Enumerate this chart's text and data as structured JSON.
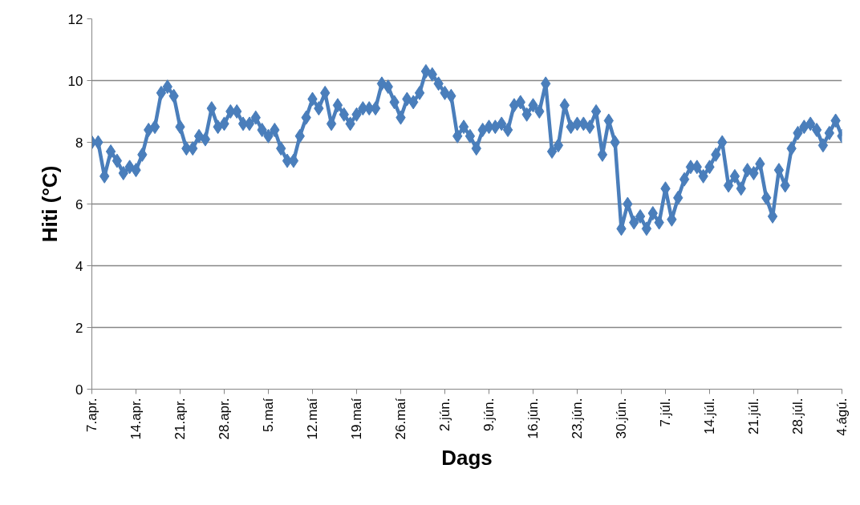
{
  "chart_data": {
    "type": "line",
    "xlabel": "Dags",
    "ylabel": "Hiti (°C)",
    "categories": [
      "7.apr.",
      null,
      null,
      null,
      null,
      null,
      null,
      "14.apr.",
      null,
      null,
      null,
      null,
      null,
      null,
      "21.apr.",
      null,
      null,
      null,
      null,
      null,
      null,
      "28.apr.",
      null,
      null,
      null,
      null,
      null,
      null,
      "5.maí",
      null,
      null,
      null,
      null,
      null,
      null,
      "12.maí",
      null,
      null,
      null,
      null,
      null,
      null,
      "19.maí",
      null,
      null,
      null,
      null,
      null,
      null,
      "26.maí",
      null,
      null,
      null,
      null,
      null,
      null,
      "2.jún.",
      null,
      null,
      null,
      null,
      null,
      null,
      "9.jún.",
      null,
      null,
      null,
      null,
      null,
      null,
      "16.jún.",
      null,
      null,
      null,
      null,
      null,
      null,
      "23.jún.",
      null,
      null,
      null,
      null,
      null,
      null,
      "30.jún.",
      null,
      null,
      null,
      null,
      null,
      null,
      "7.júl.",
      null,
      null,
      null,
      null,
      null,
      null,
      "14.júl.",
      null,
      null,
      null,
      null,
      null,
      null,
      "21.júl.",
      null,
      null,
      null,
      null,
      null,
      null,
      "28.júl.",
      null,
      null,
      null,
      null,
      null,
      null,
      "4.ágú."
    ],
    "series": [
      {
        "color": "#4a7ebb",
        "values": [
          8.0,
          8.0,
          6.9,
          7.7,
          7.4,
          7.0,
          7.2,
          7.1,
          7.6,
          8.4,
          8.5,
          9.6,
          9.8,
          9.5,
          8.5,
          7.8,
          7.8,
          8.2,
          8.1,
          9.1,
          8.5,
          8.6,
          9.0,
          9.0,
          8.6,
          8.6,
          8.8,
          8.4,
          8.2,
          8.4,
          7.8,
          7.4,
          7.4,
          8.2,
          8.8,
          9.4,
          9.1,
          9.6,
          8.6,
          9.2,
          8.9,
          8.6,
          8.9,
          9.1,
          9.1,
          9.1,
          9.9,
          9.8,
          9.3,
          8.8,
          9.4,
          9.3,
          9.6,
          10.3,
          10.2,
          9.9,
          9.6,
          9.5,
          8.2,
          8.5,
          8.2,
          7.8,
          8.4,
          8.5,
          8.5,
          8.6,
          8.4,
          9.2,
          9.3,
          8.9,
          9.2,
          9.0,
          9.9,
          7.7,
          7.9,
          9.2,
          8.5,
          8.6,
          8.6,
          8.5,
          9.0,
          7.6,
          8.7,
          8.0,
          5.2,
          6.0,
          5.4,
          5.6,
          5.2,
          5.7,
          5.4,
          6.5,
          5.5,
          6.2,
          6.8,
          7.2,
          7.2,
          6.9,
          7.2,
          7.6,
          8.0,
          6.6,
          6.9,
          6.5,
          7.1,
          7.0,
          7.3,
          6.2,
          5.6,
          7.1,
          6.6,
          7.8,
          8.3,
          8.5,
          8.6,
          8.4,
          7.9,
          8.3,
          8.7,
          8.2
        ]
      }
    ],
    "ylim": [
      0,
      12
    ],
    "yticks": [
      0,
      2,
      4,
      6,
      8,
      10,
      12
    ],
    "grid": "y",
    "marker": "diamond",
    "line_style": "solid"
  }
}
